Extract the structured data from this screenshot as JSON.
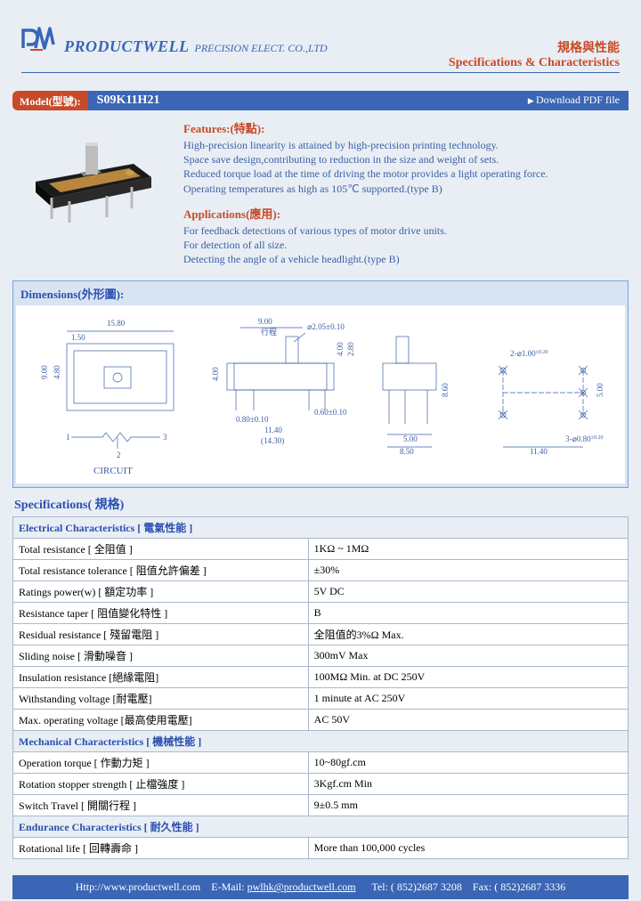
{
  "header": {
    "company_main": "PRODUCTWELL",
    "company_sub": "PRECISION ELECT. CO.,LTD",
    "title_cn": "規格與性能",
    "title_en": "Specifications & Characteristics"
  },
  "model": {
    "label": "Model(型號):",
    "value": "S09K11H21",
    "download": "Download PDF file"
  },
  "features": {
    "title": "Features:(特點):",
    "lines": [
      "High-precision linearity is attained by high-precision printing technology.",
      "Space save design,contributing to reduction in the size and weight of sets.",
      "Reduced torque load at the time of driving the motor provides a light operating force.",
      "Operating temperatures as high as 105℃ supported.(type B)"
    ]
  },
  "applications": {
    "title": "Applications(應用):",
    "lines": [
      "For feedback detections of various types of motor drive units.",
      "For detection of all size.",
      "Detecting the angle of a vehicle headlight.(type B)"
    ]
  },
  "dimensions": {
    "title": "Dimensions(外形圖):",
    "labels": {
      "w_total": "15.80",
      "w_edge": "1.50",
      "h_side": "9.00",
      "h_inner": "4.80",
      "travel_w": "9.00",
      "travel_label": "行程",
      "shaft_d": "⌀2.05±0.10",
      "shaft_h": "4.00",
      "shaft_h2": "2.80",
      "body_h": "4.00",
      "pin_pitch1": "0.80±0.10",
      "pin_pitch2": "11.40",
      "pin_pitch3": "(14.30)",
      "pin_thick": "0.60±0.10",
      "side_h": "8.60",
      "side_5": "5.00",
      "side_85": "8.50",
      "foot1": "2-⌀1.00",
      "foot_tol": "±0.20",
      "foot2": "3-⌀0.80",
      "foot_tol2": "±0.20",
      "foot_h": "5.00",
      "foot_w": "11.40",
      "circuit": "CIRCUIT",
      "pin1": "1",
      "pin2": "2",
      "pin3": "3"
    }
  },
  "spec_title": "Specifications( 規格)",
  "specs": {
    "elec_head": "Electrical Characteristics [ 電氣性能 ]",
    "rows_elec": [
      {
        "l": "Total resistance [ 全阻值 ]",
        "v": "1KΩ ~ 1MΩ"
      },
      {
        "l": "Total resistance tolerance [ 阻值允許偏差 ]",
        "v": "±30%"
      },
      {
        "l": "Ratings power(w) [ 額定功率 ]",
        "v": "5V DC"
      },
      {
        "l": "Resistance taper [ 阻值變化特性 ]",
        "v": "B"
      },
      {
        "l": "Residual resistance [ 殘留電阻 ]",
        "v": "全阻值的3%Ω Max."
      },
      {
        "l": "Sliding noise [ 滑動噪音 ]",
        "v": "300mV Max"
      },
      {
        "l": "Insulation resistance [絕緣電阻]",
        "v": "100MΩ Min. at DC 250V"
      },
      {
        "l": "Withstanding voltage [耐電壓]",
        "v": "1 minute at AC 250V"
      },
      {
        "l": "Max. operating voltage [最高使用電壓]",
        "v": "AC 50V"
      }
    ],
    "mech_head": "Mechanical Characteristics [ 機械性能 ]",
    "rows_mech": [
      {
        "l": "Operation torque [ 作動力矩 ]",
        "v": "10~80gf.cm"
      },
      {
        "l": "Rotation stopper strength [ 止檔強度 ]",
        "v": "3Kgf.cm Min"
      },
      {
        "l": "Switch Travel [ 開關行程 ]",
        "v": "9±0.5 mm"
      }
    ],
    "endur_head": "Endurance Characteristics [ 耐久性能 ]",
    "rows_endur": [
      {
        "l": "Rotational life [ 回轉壽命 ]",
        "v": "More than 100,000 cycles"
      }
    ]
  },
  "footer": {
    "url_label": "Http://www.productwell.com",
    "email_label": "E-Mail:",
    "email": "pwlhk@productwell.com",
    "tel_label": "Tel:",
    "tel": "( 852)2687 3208",
    "fax_label": "Fax:",
    "fax": "( 852)2687 3336"
  },
  "colors": {
    "accent_red": "#c84a28",
    "accent_blue": "#3a66b5",
    "bg": "#e8eef4"
  }
}
